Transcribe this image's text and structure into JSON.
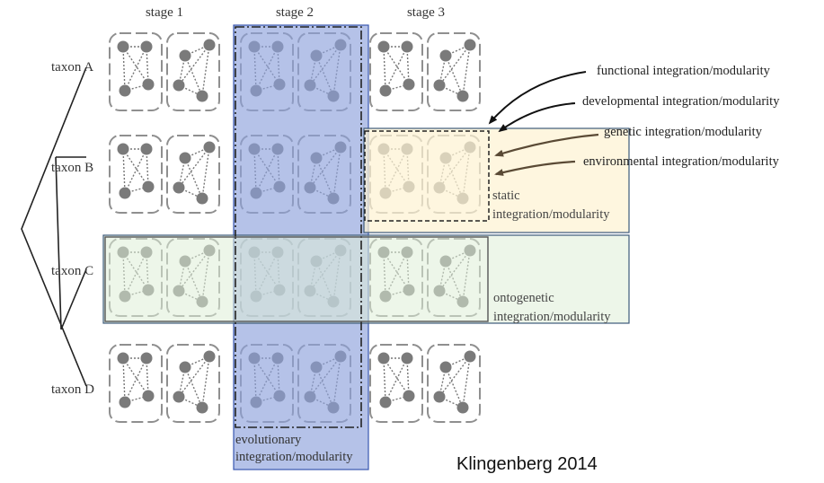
{
  "stages": [
    "stage 1",
    "stage 2",
    "stage 3"
  ],
  "taxa": [
    "taxon A",
    "taxon B",
    "taxon C",
    "taxon D"
  ],
  "arrow_labels": [
    "functional integration/modularity",
    "developmental integration/modularity",
    "genetic integration/modularity",
    "environmental integration/modularity"
  ],
  "regions": {
    "static": [
      "static",
      "integration/modularity"
    ],
    "ontogenetic": [
      "ontogenetic",
      "integration/modularity"
    ],
    "evolutionary": [
      "evolutionary",
      "integration/modularity"
    ]
  },
  "credit": "Klingenberg 2014",
  "colors": {
    "evolutionary_fill": "#8ea2dc",
    "ontogenetic_fill": "#dfeed7",
    "static_fill": "#fdf2d3",
    "node": "#7a7a7a",
    "box_border": "#8f8f8f",
    "text": "#333333"
  }
}
